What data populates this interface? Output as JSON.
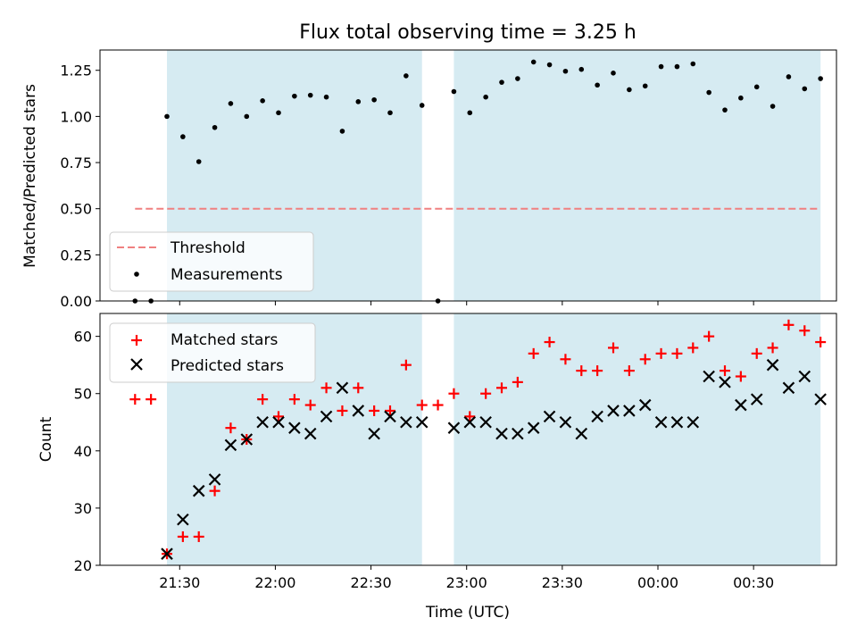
{
  "chart_data": [
    {
      "type": "scatter",
      "title": "Flux total observing time = 3.25 h",
      "xlabel": "",
      "ylabel": "Matched/Predicted stars",
      "x_axis_type": "time",
      "xlim": [
        "21:05",
        "00:56"
      ],
      "ylim": [
        0,
        1.36
      ],
      "yticks": [
        "0.00",
        "0.25",
        "0.50",
        "0.75",
        "1.00",
        "1.25"
      ],
      "xticks": [
        "21:30",
        "22:00",
        "22:30",
        "23:00",
        "23:30",
        "00:00",
        "00:30"
      ],
      "xticklabels_visible": false,
      "grid": false,
      "legend_position": "lower-left",
      "shaded_intervals": [
        [
          "21:26",
          "22:46"
        ],
        [
          "22:56",
          "00:51"
        ]
      ],
      "shade_color": "#add8e6",
      "threshold": {
        "name": "Threshold",
        "value": 0.5,
        "x_range": [
          "21:16",
          "00:51"
        ],
        "color": "#f08080",
        "style": "dashed"
      },
      "series": [
        {
          "name": "Measurements",
          "color": "#000000",
          "marker": "dot",
          "points": [
            {
              "t": "21:16",
              "y": 0.0
            },
            {
              "t": "21:21",
              "y": 0.0
            },
            {
              "t": "21:26",
              "y": 1.0
            },
            {
              "t": "21:31",
              "y": 0.89
            },
            {
              "t": "21:36",
              "y": 0.755
            },
            {
              "t": "21:41",
              "y": 0.94
            },
            {
              "t": "21:46",
              "y": 1.07
            },
            {
              "t": "21:51",
              "y": 1.0
            },
            {
              "t": "21:56",
              "y": 1.085
            },
            {
              "t": "22:01",
              "y": 1.02
            },
            {
              "t": "22:06",
              "y": 1.11
            },
            {
              "t": "22:11",
              "y": 1.115
            },
            {
              "t": "22:16",
              "y": 1.105
            },
            {
              "t": "22:21",
              "y": 0.92
            },
            {
              "t": "22:26",
              "y": 1.08
            },
            {
              "t": "22:31",
              "y": 1.09
            },
            {
              "t": "22:36",
              "y": 1.02
            },
            {
              "t": "22:41",
              "y": 1.22
            },
            {
              "t": "22:46",
              "y": 1.06
            },
            {
              "t": "22:51",
              "y": 0.0
            },
            {
              "t": "22:56",
              "y": 1.135
            },
            {
              "t": "23:01",
              "y": 1.02
            },
            {
              "t": "23:06",
              "y": 1.105
            },
            {
              "t": "23:11",
              "y": 1.185
            },
            {
              "t": "23:16",
              "y": 1.205
            },
            {
              "t": "23:21",
              "y": 1.295
            },
            {
              "t": "23:26",
              "y": 1.28
            },
            {
              "t": "23:31",
              "y": 1.245
            },
            {
              "t": "23:36",
              "y": 1.255
            },
            {
              "t": "23:41",
              "y": 1.17
            },
            {
              "t": "23:46",
              "y": 1.235
            },
            {
              "t": "23:51",
              "y": 1.145
            },
            {
              "t": "23:56",
              "y": 1.165
            },
            {
              "t": "00:01",
              "y": 1.27
            },
            {
              "t": "00:06",
              "y": 1.27
            },
            {
              "t": "00:11",
              "y": 1.285
            },
            {
              "t": "00:16",
              "y": 1.13
            },
            {
              "t": "00:21",
              "y": 1.035
            },
            {
              "t": "00:26",
              "y": 1.1
            },
            {
              "t": "00:31",
              "y": 1.16
            },
            {
              "t": "00:36",
              "y": 1.055
            },
            {
              "t": "00:41",
              "y": 1.215
            },
            {
              "t": "00:46",
              "y": 1.15
            },
            {
              "t": "00:51",
              "y": 1.205
            }
          ]
        }
      ]
    },
    {
      "type": "scatter",
      "title": "",
      "xlabel": "Time (UTC)",
      "ylabel": "Count",
      "x_axis_type": "time",
      "xlim": [
        "21:05",
        "00:56"
      ],
      "ylim": [
        20,
        64
      ],
      "yticks": [
        "20",
        "30",
        "40",
        "50",
        "60"
      ],
      "xticks": [
        "21:30",
        "22:00",
        "22:30",
        "23:00",
        "23:30",
        "00:00",
        "00:30"
      ],
      "grid": false,
      "legend_position": "upper-left",
      "shaded_intervals": [
        [
          "21:26",
          "22:46"
        ],
        [
          "22:56",
          "00:51"
        ]
      ],
      "shade_color": "#add8e6",
      "series": [
        {
          "name": "Matched stars",
          "color": "#ff0000",
          "marker": "plus",
          "points": [
            {
              "t": "21:16",
              "y": 49
            },
            {
              "t": "21:21",
              "y": 49
            },
            {
              "t": "21:26",
              "y": 22
            },
            {
              "t": "21:31",
              "y": 25
            },
            {
              "t": "21:36",
              "y": 25
            },
            {
              "t": "21:41",
              "y": 33
            },
            {
              "t": "21:46",
              "y": 44
            },
            {
              "t": "21:51",
              "y": 42
            },
            {
              "t": "21:56",
              "y": 49
            },
            {
              "t": "22:01",
              "y": 46
            },
            {
              "t": "22:06",
              "y": 49
            },
            {
              "t": "22:11",
              "y": 48
            },
            {
              "t": "22:16",
              "y": 51
            },
            {
              "t": "22:21",
              "y": 47
            },
            {
              "t": "22:26",
              "y": 51
            },
            {
              "t": "22:31",
              "y": 47
            },
            {
              "t": "22:36",
              "y": 47
            },
            {
              "t": "22:41",
              "y": 55
            },
            {
              "t": "22:46",
              "y": 48
            },
            {
              "t": "22:51",
              "y": 48
            },
            {
              "t": "22:56",
              "y": 50
            },
            {
              "t": "23:01",
              "y": 46
            },
            {
              "t": "23:06",
              "y": 50
            },
            {
              "t": "23:11",
              "y": 51
            },
            {
              "t": "23:16",
              "y": 52
            },
            {
              "t": "23:21",
              "y": 57
            },
            {
              "t": "23:26",
              "y": 59
            },
            {
              "t": "23:31",
              "y": 56
            },
            {
              "t": "23:36",
              "y": 54
            },
            {
              "t": "23:41",
              "y": 54
            },
            {
              "t": "23:46",
              "y": 58
            },
            {
              "t": "23:51",
              "y": 54
            },
            {
              "t": "23:56",
              "y": 56
            },
            {
              "t": "00:01",
              "y": 57
            },
            {
              "t": "00:06",
              "y": 57
            },
            {
              "t": "00:11",
              "y": 58
            },
            {
              "t": "00:16",
              "y": 60
            },
            {
              "t": "00:21",
              "y": 54
            },
            {
              "t": "00:26",
              "y": 53
            },
            {
              "t": "00:31",
              "y": 57
            },
            {
              "t": "00:36",
              "y": 58
            },
            {
              "t": "00:41",
              "y": 62
            },
            {
              "t": "00:46",
              "y": 61
            },
            {
              "t": "00:51",
              "y": 59
            }
          ]
        },
        {
          "name": "Predicted stars",
          "color": "#000000",
          "marker": "x",
          "points": [
            {
              "t": "21:26",
              "y": 22
            },
            {
              "t": "21:31",
              "y": 28
            },
            {
              "t": "21:36",
              "y": 33
            },
            {
              "t": "21:41",
              "y": 35
            },
            {
              "t": "21:46",
              "y": 41
            },
            {
              "t": "21:51",
              "y": 42
            },
            {
              "t": "21:56",
              "y": 45
            },
            {
              "t": "22:01",
              "y": 45
            },
            {
              "t": "22:06",
              "y": 44
            },
            {
              "t": "22:11",
              "y": 43
            },
            {
              "t": "22:16",
              "y": 46
            },
            {
              "t": "22:21",
              "y": 51
            },
            {
              "t": "22:26",
              "y": 47
            },
            {
              "t": "22:31",
              "y": 43
            },
            {
              "t": "22:36",
              "y": 46
            },
            {
              "t": "22:41",
              "y": 45
            },
            {
              "t": "22:46",
              "y": 45
            },
            {
              "t": "22:56",
              "y": 44
            },
            {
              "t": "23:01",
              "y": 45
            },
            {
              "t": "23:06",
              "y": 45
            },
            {
              "t": "23:11",
              "y": 43
            },
            {
              "t": "23:16",
              "y": 43
            },
            {
              "t": "23:21",
              "y": 44
            },
            {
              "t": "23:26",
              "y": 46
            },
            {
              "t": "23:31",
              "y": 45
            },
            {
              "t": "23:36",
              "y": 43
            },
            {
              "t": "23:41",
              "y": 46
            },
            {
              "t": "23:46",
              "y": 47
            },
            {
              "t": "23:51",
              "y": 47
            },
            {
              "t": "23:56",
              "y": 48
            },
            {
              "t": "00:01",
              "y": 45
            },
            {
              "t": "00:06",
              "y": 45
            },
            {
              "t": "00:11",
              "y": 45
            },
            {
              "t": "00:16",
              "y": 53
            },
            {
              "t": "00:21",
              "y": 52
            },
            {
              "t": "00:26",
              "y": 48
            },
            {
              "t": "00:31",
              "y": 49
            },
            {
              "t": "00:36",
              "y": 55
            },
            {
              "t": "00:41",
              "y": 51
            },
            {
              "t": "00:46",
              "y": 53
            },
            {
              "t": "00:51",
              "y": 49
            }
          ]
        }
      ]
    }
  ]
}
